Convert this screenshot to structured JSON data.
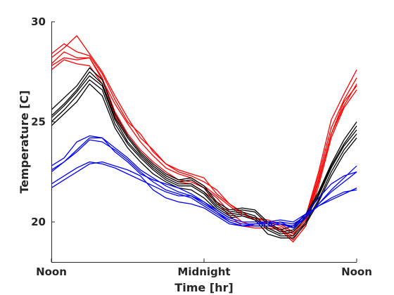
{
  "chart_data": {
    "type": "line",
    "xlabel": "Time [hr]",
    "ylabel": "Temperature [C]",
    "xlim": [
      12,
      36
    ],
    "ylim": [
      18,
      30
    ],
    "x_ticks": [
      {
        "value": 12,
        "label": "Noon"
      },
      {
        "value": 24,
        "label": "Midnight"
      },
      {
        "value": 36,
        "label": "Noon"
      }
    ],
    "y_ticks": [
      {
        "value": 20,
        "label": "20"
      },
      {
        "value": 25,
        "label": "25"
      },
      {
        "value": 30,
        "label": "30"
      }
    ],
    "x": [
      12,
      13,
      14,
      15,
      16,
      17,
      18,
      19,
      20,
      21,
      22,
      23,
      24,
      25,
      26,
      27,
      28,
      29,
      30,
      31,
      32,
      33,
      34,
      35,
      36
    ],
    "colors": {
      "red": "#ff0000",
      "black": "#000000",
      "blue": "#0000ff"
    },
    "series": [
      {
        "color": "red",
        "values": [
          28.4,
          28.9,
          28.5,
          28.3,
          27.4,
          26.1,
          25.0,
          24.4,
          23.5,
          22.9,
          22.5,
          22.3,
          22.0,
          21.6,
          20.9,
          20.5,
          20.1,
          19.9,
          19.6,
          19.3,
          20.3,
          22.5,
          25.1,
          26.4,
          27.6
        ]
      },
      {
        "color": "red",
        "values": [
          28.2,
          28.7,
          29.3,
          28.4,
          27.5,
          26.3,
          25.2,
          24.2,
          23.6,
          22.9,
          22.6,
          22.4,
          22.2,
          21.4,
          20.9,
          20.4,
          20.2,
          20.1,
          19.9,
          19.5,
          20.2,
          22.3,
          24.7,
          26.1,
          27.2
        ]
      },
      {
        "color": "red",
        "values": [
          27.9,
          28.5,
          28.2,
          28.2,
          27.1,
          25.9,
          24.9,
          24.0,
          23.3,
          22.7,
          22.4,
          22.2,
          21.8,
          21.3,
          20.8,
          20.3,
          20.2,
          20.0,
          19.8,
          19.4,
          20.1,
          22.1,
          24.4,
          25.8,
          26.9
        ]
      },
      {
        "color": "red",
        "values": [
          27.8,
          28.2,
          28.1,
          28.2,
          27.2,
          25.5,
          24.4,
          23.6,
          23.0,
          22.5,
          22.1,
          22.0,
          21.7,
          21.2,
          20.5,
          20.0,
          19.8,
          19.8,
          19.7,
          19.1,
          20.0,
          22.0,
          24.4,
          26.0,
          26.8
        ]
      },
      {
        "color": "red",
        "values": [
          27.6,
          28.1,
          27.9,
          27.8,
          26.9,
          25.3,
          24.2,
          23.4,
          22.8,
          22.3,
          22.0,
          21.9,
          21.5,
          21.0,
          20.3,
          19.8,
          19.7,
          19.7,
          19.6,
          19.0,
          19.8,
          21.8,
          24.2,
          25.7,
          26.6
        ]
      },
      {
        "color": "black",
        "values": [
          25.6,
          26.2,
          26.8,
          27.7,
          27.1,
          25.4,
          24.3,
          23.5,
          22.9,
          22.4,
          22.1,
          22.2,
          21.8,
          21.0,
          20.6,
          20.7,
          20.6,
          20.0,
          19.6,
          19.8,
          20.4,
          21.5,
          22.9,
          24.1,
          25.0
        ]
      },
      {
        "color": "black",
        "values": [
          25.3,
          25.9,
          26.6,
          27.5,
          26.9,
          25.2,
          24.2,
          23.4,
          22.8,
          22.3,
          22.0,
          22.1,
          21.7,
          20.9,
          20.5,
          20.6,
          20.5,
          19.9,
          19.5,
          19.6,
          20.3,
          21.4,
          22.8,
          23.9,
          24.8
        ]
      },
      {
        "color": "black",
        "values": [
          25.2,
          25.8,
          26.5,
          27.3,
          26.8,
          25.1,
          24.0,
          23.3,
          22.7,
          22.2,
          21.9,
          21.9,
          21.5,
          20.8,
          20.4,
          20.5,
          20.3,
          19.7,
          19.4,
          19.5,
          20.2,
          21.3,
          22.7,
          23.8,
          24.6
        ]
      },
      {
        "color": "black",
        "values": [
          25.0,
          25.6,
          26.3,
          27.1,
          26.6,
          24.9,
          23.9,
          23.2,
          22.6,
          22.1,
          21.8,
          21.8,
          21.4,
          20.7,
          20.3,
          20.4,
          20.2,
          19.6,
          19.3,
          19.3,
          20.0,
          21.1,
          22.5,
          23.6,
          24.4
        ]
      },
      {
        "color": "black",
        "values": [
          24.8,
          25.4,
          26.0,
          26.9,
          26.3,
          24.7,
          23.7,
          23.0,
          22.4,
          22.0,
          21.7,
          21.6,
          21.2,
          20.6,
          20.2,
          20.3,
          20.1,
          19.4,
          19.2,
          19.2,
          19.9,
          21.0,
          22.3,
          23.4,
          24.2
        ]
      },
      {
        "color": "blue",
        "values": [
          22.8,
          23.2,
          24.0,
          24.3,
          24.2,
          23.5,
          23.0,
          22.4,
          22.1,
          21.9,
          21.7,
          21.4,
          21.0,
          20.6,
          20.2,
          20.0,
          20.0,
          20.0,
          19.9,
          19.8,
          20.2,
          20.9,
          21.6,
          22.2,
          22.8
        ]
      },
      {
        "color": "blue",
        "values": [
          22.6,
          23.0,
          23.6,
          24.2,
          24.2,
          23.7,
          23.2,
          22.6,
          22.2,
          21.8,
          21.5,
          21.3,
          20.9,
          20.5,
          20.1,
          19.9,
          19.9,
          19.9,
          20.0,
          19.7,
          20.4,
          21.2,
          21.9,
          22.3,
          22.5
        ]
      },
      {
        "color": "blue",
        "values": [
          22.5,
          23.0,
          23.5,
          24.1,
          24.0,
          23.6,
          23.1,
          22.5,
          22.0,
          21.6,
          21.4,
          21.2,
          20.8,
          20.4,
          20.0,
          19.8,
          19.8,
          19.8,
          19.9,
          19.7,
          20.2,
          20.9,
          21.5,
          22.0,
          22.5
        ]
      },
      {
        "color": "blue",
        "values": [
          21.9,
          22.3,
          22.7,
          23.0,
          22.9,
          22.7,
          22.4,
          22.1,
          21.8,
          21.5,
          21.3,
          21.3,
          21.0,
          20.5,
          20.0,
          19.8,
          19.9,
          19.9,
          20.0,
          19.9,
          20.3,
          20.8,
          21.1,
          21.4,
          21.7
        ]
      },
      {
        "color": "blue",
        "values": [
          21.7,
          22.1,
          22.5,
          22.9,
          23.0,
          22.8,
          22.6,
          22.3,
          21.6,
          21.2,
          21.0,
          20.9,
          20.7,
          20.3,
          19.9,
          19.8,
          19.9,
          20.0,
          20.1,
          20.0,
          20.4,
          20.8,
          21.2,
          21.5,
          21.6
        ]
      }
    ]
  }
}
